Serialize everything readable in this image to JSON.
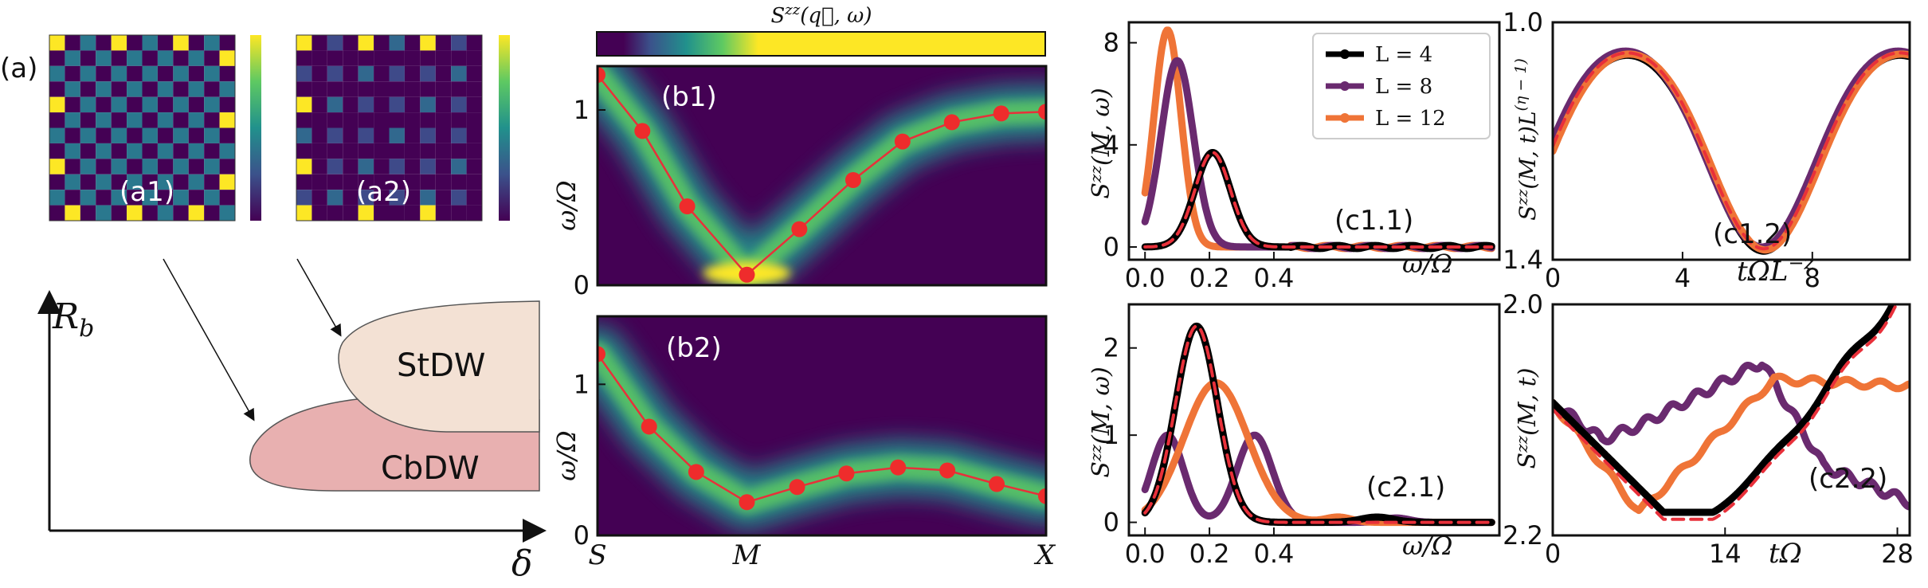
{
  "panel_a": {
    "label": "(a)",
    "sub_labels": [
      "(a1)",
      "(a2)"
    ],
    "checkerboard_grid": 12,
    "stripe_cells": "partial",
    "phase_axis_x": "δ",
    "phase_axis_y": "R_b",
    "phase_axis_y_base": "R",
    "phase_axis_y_sub": "b",
    "regions": [
      "StDW",
      "CbDW"
    ],
    "colors": {
      "StDW": "#f3e1d4",
      "CbDW": "#e8b0b0"
    }
  },
  "colorbar_title": "S^zz(q, ω)",
  "colorbar_label_base": "S",
  "colorbar_label_sup": "zz",
  "colorbar_label_args": "(q⃗, ω)",
  "chart_data": [
    {
      "id": "b1",
      "type": "heatmap",
      "label": "(b1)",
      "ylabel": "ω/Ω",
      "ylim": [
        0,
        1.25
      ],
      "yticks": [
        "0",
        "1"
      ],
      "dispersion_points": [
        [
          0,
          1.2
        ],
        [
          0.1,
          0.88
        ],
        [
          0.2,
          0.45
        ],
        [
          0.333,
          0.06
        ],
        [
          0.45,
          0.32
        ],
        [
          0.57,
          0.6
        ],
        [
          0.68,
          0.82
        ],
        [
          0.79,
          0.93
        ],
        [
          0.9,
          0.98
        ],
        [
          1.0,
          0.99
        ]
      ]
    },
    {
      "id": "b2",
      "type": "heatmap",
      "label": "(b2)",
      "ylabel": "ω/Ω",
      "ylim": [
        0,
        1.45
      ],
      "yticks": [
        "0",
        "1"
      ],
      "xticklabels": [
        "S",
        "M",
        "X"
      ],
      "dispersion_points": [
        [
          0,
          1.2
        ],
        [
          0.115,
          0.72
        ],
        [
          0.22,
          0.42
        ],
        [
          0.333,
          0.22
        ],
        [
          0.445,
          0.32
        ],
        [
          0.555,
          0.41
        ],
        [
          0.67,
          0.45
        ],
        [
          0.78,
          0.43
        ],
        [
          0.89,
          0.34
        ],
        [
          1.0,
          0.26
        ]
      ]
    },
    {
      "id": "c1.1",
      "type": "line",
      "label": "(c1.1)",
      "xlabel": "ω/Ω",
      "ylabel": "S^zz(M, ω)",
      "xlim": [
        -0.05,
        1.1
      ],
      "ylim": [
        -0.5,
        8.8
      ],
      "xticks": [
        0.0,
        0.2,
        0.4
      ],
      "yticks": [
        0,
        4,
        8
      ],
      "legend": [
        "L = 4",
        "L = 8",
        "L = 12"
      ],
      "series": [
        {
          "name": "L = 4",
          "color": "#000000",
          "peaks": [
            [
              0.21,
              3.7,
              0.055
            ]
          ]
        },
        {
          "name": "L = 8",
          "color": "#6a2a6f",
          "peaks": [
            [
              0.1,
              7.3,
              0.05
            ]
          ]
        },
        {
          "name": "L = 12",
          "color": "#ef7437",
          "peaks": [
            [
              0.07,
              8.5,
              0.042
            ]
          ]
        }
      ],
      "dashed_fit": {
        "color": "#e8303a",
        "peaks": [
          [
            0.21,
            3.7,
            0.055
          ]
        ]
      }
    },
    {
      "id": "c1.2",
      "type": "line",
      "label": "(c1.2)",
      "xlabel": "tΩL^-z",
      "ylabel": "S^zz(M, t)L^(η-1)",
      "xlim": [
        0,
        11
      ],
      "ylim": [
        1.4,
        1.0
      ],
      "xticks": [
        0,
        4,
        8
      ],
      "yticks": [
        1.0,
        1.4
      ],
      "series": [
        {
          "name": "L = 4",
          "color": "#000000"
        },
        {
          "name": "L = 8",
          "color": "#6a2a6f"
        },
        {
          "name": "L = 12",
          "color": "#ef7437"
        }
      ],
      "dashed_fit": {
        "color": "#e8303a"
      }
    },
    {
      "id": "c2.1",
      "type": "line",
      "label": "(c2.1)",
      "xlabel": "ω/Ω",
      "ylabel": "S^zz(M, ω)",
      "xlim": [
        -0.05,
        1.1
      ],
      "ylim": [
        -0.15,
        2.5
      ],
      "xticks": [
        0.0,
        0.2,
        0.4
      ],
      "yticks": [
        0,
        1,
        2
      ],
      "series": [
        {
          "name": "L = 4",
          "color": "#000000",
          "peaks": [
            [
              0.16,
              2.25,
              0.065
            ],
            [
              0.72,
              0.06,
              0.05
            ]
          ]
        },
        {
          "name": "L = 8",
          "color": "#6a2a6f",
          "peaks": [
            [
              0.07,
              1.0,
              0.05
            ],
            [
              0.34,
              1.0,
              0.055
            ],
            [
              0.78,
              0.05,
              0.04
            ]
          ]
        },
        {
          "name": "L = 12",
          "color": "#ef7437",
          "peaks": [
            [
              0.22,
              1.6,
              0.1
            ],
            [
              0.6,
              0.06,
              0.04
            ]
          ]
        }
      ],
      "dashed_fit": {
        "color": "#e8303a",
        "peaks": [
          [
            0.16,
            2.25,
            0.065
          ]
        ]
      }
    },
    {
      "id": "c2.2",
      "type": "line",
      "label": "(c2.2)",
      "xlabel": "tΩ",
      "ylabel": "S^zz(M, t)",
      "xlim": [
        0,
        29
      ],
      "ylim": [
        2.2,
        2.0
      ],
      "xticks": [
        0,
        14,
        28
      ],
      "yticks": [
        2.0,
        2.2
      ],
      "series": [
        {
          "name": "L = 4",
          "color": "#000000"
        },
        {
          "name": "L = 8",
          "color": "#6a2a6f"
        },
        {
          "name": "L = 12",
          "color": "#ef7437"
        }
      ],
      "dashed_fit": {
        "color": "#e8303a"
      }
    }
  ]
}
